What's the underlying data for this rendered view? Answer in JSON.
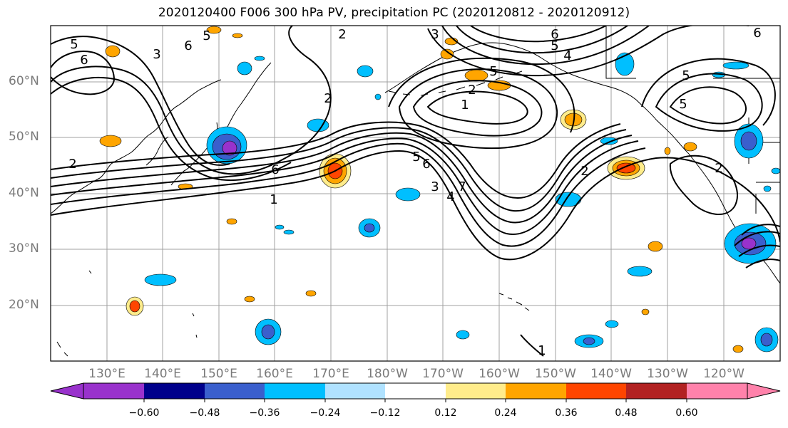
{
  "title": "2020120400 F006 300 hPa PV, precipitation PC (2020120812 - 2020120912)",
  "map": {
    "lat_labels": [
      "60°N",
      "50°N",
      "40°N",
      "30°N",
      "20°N"
    ],
    "lon_labels": [
      "130°E",
      "140°E",
      "150°E",
      "160°E",
      "170°E",
      "180°W",
      "170°W",
      "160°W",
      "150°W",
      "140°W",
      "130°W",
      "120°W"
    ],
    "contour_labels": [
      "5",
      "6",
      "3",
      "5",
      "6",
      "2",
      "3",
      "6",
      "5",
      "4",
      "6",
      "5",
      "2",
      "2",
      "1",
      "5",
      "2",
      "6",
      "1",
      "5",
      "6",
      "3",
      "4",
      "7",
      "2",
      "5",
      "2",
      "1"
    ]
  },
  "colorbar": {
    "ticks": [
      "−0.60",
      "−0.48",
      "−0.36",
      "−0.24",
      "−0.12",
      "0.12",
      "0.24",
      "0.36",
      "0.48",
      "0.60"
    ],
    "colors": [
      "#9932cc",
      "#00008b",
      "#3a5fcd",
      "#00bfff",
      "#b0e2ff",
      "#ffffff",
      "#ffec8b",
      "#ffa500",
      "#ff4500",
      "#b22222",
      "#ff82ab"
    ]
  },
  "anomaly_fill_colors": {
    "positive": [
      "#ffec8b",
      "#ffa500",
      "#ff4500"
    ],
    "negative": [
      "#b0e2ff",
      "#00bfff",
      "#3a5fcd",
      "#9932cc"
    ]
  }
}
